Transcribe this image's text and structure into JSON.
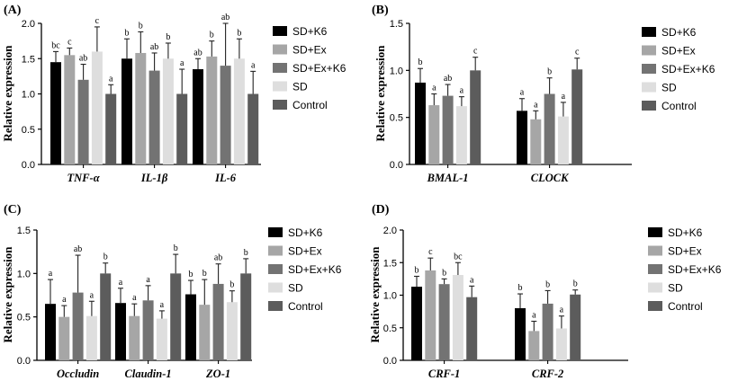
{
  "legend_labels": [
    "SD+K6",
    "SD+Ex",
    "SD+Ex+K6",
    "SD",
    "Control"
  ],
  "series_colors": [
    "#000000",
    "#a6a6a6",
    "#737373",
    "#dedede",
    "#5c5c5c"
  ],
  "chart_data": [
    {
      "panel": "(A)",
      "type": "bar",
      "ylabel": "Relative expression",
      "ylim": [
        0,
        2.0
      ],
      "yticks": [
        "0.0",
        "0.5",
        "1.0",
        "1.5",
        "2.0"
      ],
      "categories": [
        "TNF-α",
        "IL-1β",
        "IL-6"
      ],
      "series": [
        {
          "name": "SD+K6",
          "values": [
            1.45,
            1.5,
            1.35
          ],
          "errors": [
            0.15,
            0.28,
            0.15
          ],
          "labels": [
            "bc",
            "b",
            "ab"
          ]
        },
        {
          "name": "SD+Ex",
          "values": [
            1.55,
            1.58,
            1.53
          ],
          "errors": [
            0.1,
            0.3,
            0.22
          ],
          "labels": [
            "c",
            "b",
            "b"
          ]
        },
        {
          "name": "SD+Ex+K6",
          "values": [
            1.2,
            1.33,
            1.4
          ],
          "errors": [
            0.22,
            0.25,
            0.6
          ],
          "labels": [
            "ab",
            "ab",
            "ab"
          ]
        },
        {
          "name": "SD",
          "values": [
            1.6,
            1.5,
            1.5
          ],
          "errors": [
            0.35,
            0.22,
            0.28
          ],
          "labels": [
            "c",
            "b",
            "b"
          ]
        },
        {
          "name": "Control",
          "values": [
            1.0,
            1.0,
            1.0
          ],
          "errors": [
            0.13,
            0.35,
            0.32
          ],
          "labels": [
            "a",
            "a",
            "a"
          ]
        }
      ]
    },
    {
      "panel": "(B)",
      "type": "bar",
      "ylabel": "Relative expression",
      "ylim": [
        0,
        1.5
      ],
      "yticks": [
        "0.0",
        "0.5",
        "1.0",
        "1.5"
      ],
      "categories": [
        "BMAL-1",
        "CLOCK"
      ],
      "series": [
        {
          "name": "SD+K6",
          "values": [
            0.87,
            0.57
          ],
          "errors": [
            0.15,
            0.13
          ],
          "labels": [
            "b",
            "a"
          ]
        },
        {
          "name": "SD+Ex",
          "values": [
            0.63,
            0.48
          ],
          "errors": [
            0.12,
            0.09
          ],
          "labels": [
            "a",
            "a"
          ]
        },
        {
          "name": "SD+Ex+K6",
          "values": [
            0.73,
            0.75
          ],
          "errors": [
            0.12,
            0.17
          ],
          "labels": [
            "ab",
            "b"
          ]
        },
        {
          "name": "SD",
          "values": [
            0.62,
            0.51
          ],
          "errors": [
            0.1,
            0.15
          ],
          "labels": [
            "a",
            "a"
          ]
        },
        {
          "name": "Control",
          "values": [
            1.0,
            1.01
          ],
          "errors": [
            0.14,
            0.12
          ],
          "labels": [
            "c",
            "c"
          ]
        }
      ]
    },
    {
      "panel": "(C)",
      "type": "bar",
      "ylabel": "Relative expression",
      "ylim": [
        0,
        1.5
      ],
      "yticks": [
        "0.0",
        "0.5",
        "1.0",
        "1.5"
      ],
      "categories": [
        "Occludin",
        "Claudin-1",
        "ZO-1"
      ],
      "series": [
        {
          "name": "SD+K6",
          "values": [
            0.65,
            0.66,
            0.76
          ],
          "errors": [
            0.28,
            0.17,
            0.16
          ],
          "labels": [
            "a",
            "a",
            "b"
          ]
        },
        {
          "name": "SD+Ex",
          "values": [
            0.5,
            0.51,
            0.64
          ],
          "errors": [
            0.13,
            0.14,
            0.29
          ],
          "labels": [
            "a",
            "a",
            "b"
          ]
        },
        {
          "name": "SD+Ex+K6",
          "values": [
            0.78,
            0.69,
            0.88
          ],
          "errors": [
            0.43,
            0.17,
            0.23
          ],
          "labels": [
            "ab",
            "a",
            "ab"
          ]
        },
        {
          "name": "SD",
          "values": [
            0.51,
            0.48,
            0.67
          ],
          "errors": [
            0.17,
            0.09,
            0.13
          ],
          "labels": [
            "a",
            "a",
            "b"
          ]
        },
        {
          "name": "Control",
          "values": [
            1.0,
            1.0,
            1.0
          ],
          "errors": [
            0.12,
            0.22,
            0.17
          ],
          "labels": [
            "b",
            "b",
            "b"
          ]
        }
      ]
    },
    {
      "panel": "(D)",
      "type": "bar",
      "ylabel": "Relative expression",
      "ylim": [
        0,
        2.0
      ],
      "yticks": [
        "0.0",
        "0.5",
        "1.0",
        "1.5",
        "2.0"
      ],
      "categories": [
        "CRF-1",
        "CRF-2"
      ],
      "series": [
        {
          "name": "SD+K6",
          "values": [
            1.13,
            0.8
          ],
          "errors": [
            0.16,
            0.22
          ],
          "labels": [
            "b",
            "b"
          ]
        },
        {
          "name": "SD+Ex",
          "values": [
            1.38,
            0.45
          ],
          "errors": [
            0.19,
            0.15
          ],
          "labels": [
            "c",
            "a"
          ]
        },
        {
          "name": "SD+Ex+K6",
          "values": [
            1.17,
            0.87
          ],
          "errors": [
            0.08,
            0.2
          ],
          "labels": [
            "b",
            "b"
          ]
        },
        {
          "name": "SD",
          "values": [
            1.31,
            0.49
          ],
          "errors": [
            0.19,
            0.19
          ],
          "labels": [
            "bc",
            "a"
          ]
        },
        {
          "name": "Control",
          "values": [
            0.97,
            1.01
          ],
          "errors": [
            0.17,
            0.07
          ],
          "labels": [
            "a",
            "b"
          ]
        }
      ]
    }
  ]
}
